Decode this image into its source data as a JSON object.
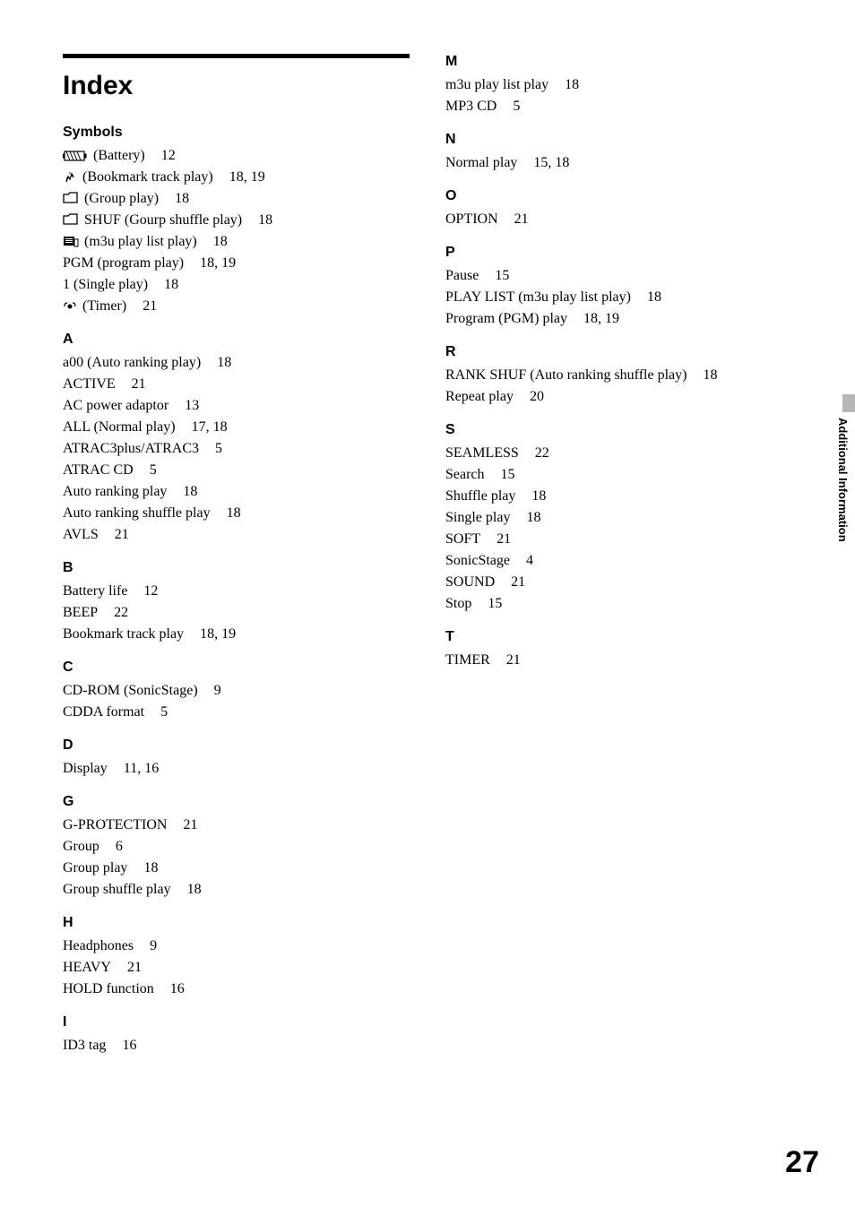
{
  "title": "Index",
  "page_number": "27",
  "side_tab": "Additional Information",
  "left": {
    "sections": [
      {
        "heading": "Symbols",
        "first": true,
        "entries": [
          {
            "icon": "battery",
            "label": "(Battery)",
            "pages": "12"
          },
          {
            "icon": "bookmark",
            "label": "(Bookmark track play)",
            "pages": "18, 19"
          },
          {
            "icon": "folder",
            "label": "(Group play)",
            "pages": "18"
          },
          {
            "icon": "folder",
            "label": "SHUF (Gourp shuffle play)",
            "pages": "18"
          },
          {
            "icon": "playlist",
            "label": "(m3u play list play)",
            "pages": "18"
          },
          {
            "label": "PGM (program play)",
            "pages": "18, 19"
          },
          {
            "label": "1 (Single play)",
            "pages": "18"
          },
          {
            "icon": "timer",
            "label": "(Timer)",
            "pages": "21"
          }
        ]
      },
      {
        "heading": "A",
        "entries": [
          {
            "label": "a00 (Auto ranking play)",
            "pages": "18"
          },
          {
            "label": "ACTIVE",
            "pages": "21"
          },
          {
            "label": "AC power adaptor",
            "pages": "13"
          },
          {
            "label": "ALL (Normal play)",
            "pages": "17, 18"
          },
          {
            "label": "ATRAC3plus/ATRAC3",
            "pages": "5"
          },
          {
            "label": "ATRAC CD",
            "pages": "5"
          },
          {
            "label": "Auto ranking play",
            "pages": "18"
          },
          {
            "label": "Auto ranking shuffle play",
            "pages": "18"
          },
          {
            "label": "AVLS",
            "pages": "21"
          }
        ]
      },
      {
        "heading": "B",
        "entries": [
          {
            "label": "Battery life",
            "pages": "12"
          },
          {
            "label": "BEEP",
            "pages": "22"
          },
          {
            "label": "Bookmark track play",
            "pages": "18, 19"
          }
        ]
      },
      {
        "heading": "C",
        "entries": [
          {
            "label": "CD-ROM (SonicStage)",
            "pages": "9"
          },
          {
            "label": "CDDA format",
            "pages": "5"
          }
        ]
      },
      {
        "heading": "D",
        "entries": [
          {
            "label": "Display",
            "pages": "11, 16"
          }
        ]
      },
      {
        "heading": "G",
        "entries": [
          {
            "label": "G-PROTECTION",
            "pages": "21"
          },
          {
            "label": "Group",
            "pages": "6"
          },
          {
            "label": "Group play",
            "pages": "18"
          },
          {
            "label": "Group shuffle play",
            "pages": "18"
          }
        ]
      },
      {
        "heading": "H",
        "entries": [
          {
            "label": "Headphones",
            "pages": "9"
          },
          {
            "label": "HEAVY",
            "pages": "21"
          },
          {
            "label": "HOLD function",
            "pages": "16"
          }
        ]
      },
      {
        "heading": "I",
        "entries": [
          {
            "label": "ID3 tag",
            "pages": "16"
          }
        ]
      }
    ]
  },
  "right": {
    "sections": [
      {
        "heading": "M",
        "first": true,
        "entries": [
          {
            "label": "m3u play list play",
            "pages": "18"
          },
          {
            "label": "MP3 CD",
            "pages": "5"
          }
        ]
      },
      {
        "heading": "N",
        "entries": [
          {
            "label": "Normal play",
            "pages": "15, 18"
          }
        ]
      },
      {
        "heading": "O",
        "entries": [
          {
            "label": "OPTION",
            "pages": "21"
          }
        ]
      },
      {
        "heading": "P",
        "entries": [
          {
            "label": "Pause",
            "pages": "15"
          },
          {
            "label": "PLAY LIST (m3u play list play)",
            "pages": "18"
          },
          {
            "label": "Program (PGM) play",
            "pages": "18, 19"
          }
        ]
      },
      {
        "heading": "R",
        "entries": [
          {
            "label": "RANK SHUF (Auto ranking shuffle play)",
            "pages": "18"
          },
          {
            "label": "Repeat play",
            "pages": "20"
          }
        ]
      },
      {
        "heading": "S",
        "entries": [
          {
            "label": "SEAMLESS",
            "pages": "22"
          },
          {
            "label": "Search",
            "pages": "15"
          },
          {
            "label": "Shuffle play",
            "pages": "18"
          },
          {
            "label": "Single play",
            "pages": "18"
          },
          {
            "label": "SOFT",
            "pages": "21"
          },
          {
            "label": "SonicStage",
            "pages": "4"
          },
          {
            "label": "SOUND",
            "pages": "21"
          },
          {
            "label": "Stop",
            "pages": "15"
          }
        ]
      },
      {
        "heading": "T",
        "entries": [
          {
            "label": "TIMER",
            "pages": "21"
          }
        ]
      }
    ]
  }
}
